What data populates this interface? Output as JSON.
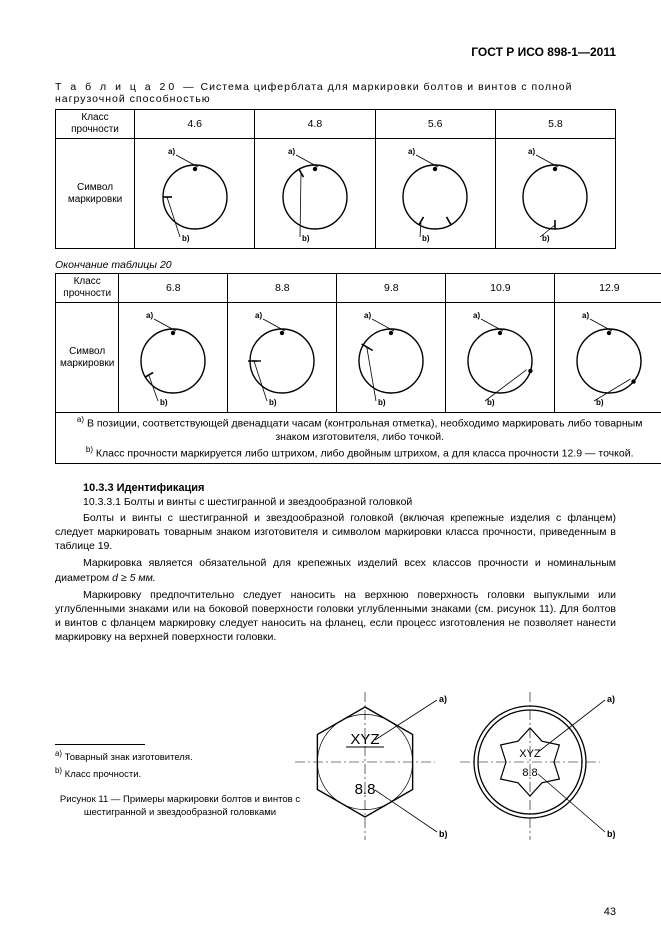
{
  "header": "ГОСТ Р ИСО 898-1—2011",
  "table20": {
    "caption_prefix": "Т а б л и ц а  20 —",
    "caption_text": " Система циферблата для маркировки болтов и винтов с полной нагрузочной способностью",
    "row1_label": "Класс прочности",
    "row2_label": "Символ маркировки",
    "cols_top": [
      "4.6",
      "4.8",
      "5.6",
      "5.8"
    ],
    "continuation": "Окончание таблицы 20",
    "cols_bot": [
      "6.8",
      "8.8",
      "9.8",
      "10.9",
      "12.9"
    ],
    "note_a": "В позиции, соответствующей двенадцати часам (контрольная отметка), необходимо маркировать либо товарным знаком изготовителя, либо точкой.",
    "note_b": "Класс прочности маркируется либо штрихом, либо двойным штрихом, а для класса прочности 12.9 — точкой.",
    "label_a": "a)",
    "label_b": "b)",
    "sup_a": "a)",
    "sup_b": "b)",
    "dial_style": {
      "stroke": "#000",
      "stroke_width": 1.4,
      "circle_r": 32,
      "font_size": 8
    },
    "dials_top": [
      {
        "marks": [
          {
            "angle": 270,
            "type": "tick"
          }
        ],
        "dot12": true
      },
      {
        "marks": [
          {
            "angle": 330,
            "type": "tick"
          }
        ],
        "dot12": true
      },
      {
        "marks": [
          {
            "angle": 210,
            "type": "tick"
          }
        ],
        "dot12": true,
        "extra": {
          "angle": 150,
          "type": "tick"
        }
      },
      {
        "marks": [
          {
            "angle": 180,
            "type": "tick"
          }
        ],
        "dot12": true
      }
    ],
    "dials_bot": [
      {
        "marks": [
          {
            "angle": 240,
            "type": "tick"
          }
        ],
        "dot12": true
      },
      {
        "marks": [
          {
            "angle": 270,
            "type": "double"
          }
        ],
        "dot12": true
      },
      {
        "marks": [
          {
            "angle": 300,
            "type": "double"
          }
        ],
        "dot12": true
      },
      {
        "marks": [
          {
            "angle": 108,
            "type": "dot"
          }
        ],
        "dot12": true
      },
      {
        "marks": [
          {
            "angle": 130,
            "type": "dot"
          }
        ],
        "dot12": true
      }
    ]
  },
  "body": {
    "h3": "10.3.3  Идентификация",
    "h4": "10.3.3.1 Болты и винты с шестигранной и звездообразной головкой",
    "p1": "Болты и винты с шестигранной и звездообразной головкой (включая крепежные изделия с фланцем) следует маркировать товарным знаком изготовителя и символом маркировки класса прочности, приведенным в таблице 19.",
    "p2_a": "Маркировка является обязательной для крепежных изделий всех классов прочности и номинальным диаметром ",
    "p2_b": "d ≥ 5 мм.",
    "p3": "Маркировку предпочтительно следует наносить на верхнюю поверхность головки выпуклыми или углубленными знаками или на боковой поверхности головки углубленными знаками (см. рисунок 11). Для болтов и винтов с фланцем маркировку следует наносить на фланец, если процесс изготовления не позволяет нанести маркировку на верхней поверхности головки."
  },
  "figure": {
    "footnote_a": "Товарный знак изготовителя.",
    "footnote_b": "Класс прочности.",
    "sup_a": "a)",
    "sup_b": "b)",
    "caption": "Рисунок 11 — Примеры маркировки болтов и винтов с шестигранной и звездообразной головками",
    "hex_label_top": "XYZ",
    "hex_label_bot": "8.8",
    "star_label_top": "XYZ",
    "star_label_bot": "8.8",
    "label_a": "a)",
    "label_b": "b)"
  },
  "page_number": "43"
}
